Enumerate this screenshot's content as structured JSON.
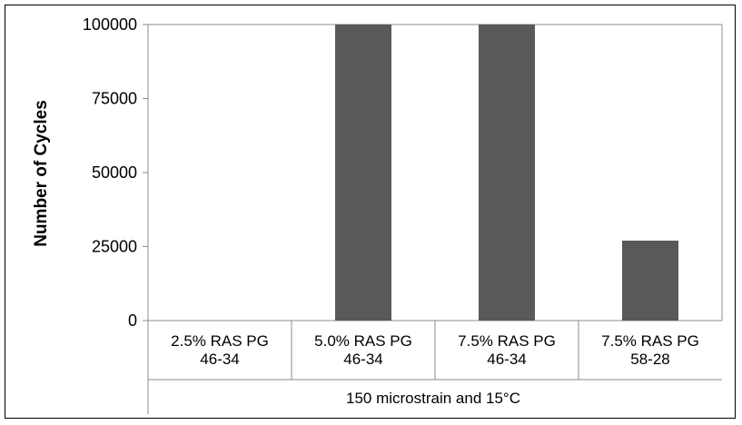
{
  "chart_data": {
    "type": "bar",
    "categories": [
      [
        "2.5% RAS PG",
        "46-34"
      ],
      [
        "5.0% RAS PG",
        "46-34"
      ],
      [
        "7.5% RAS PG",
        "46-34"
      ],
      [
        "7.5% RAS PG",
        "58-28"
      ]
    ],
    "values": [
      0,
      100000,
      100000,
      27000
    ],
    "group_label": "150 microstrain and 15°C",
    "ylabel": "Number of Cycles",
    "ylim": [
      0,
      100000
    ],
    "yticks": [
      "0",
      "25000",
      "50000",
      "75000",
      "100000"
    ],
    "grid": false,
    "bar_color": "#595959"
  }
}
